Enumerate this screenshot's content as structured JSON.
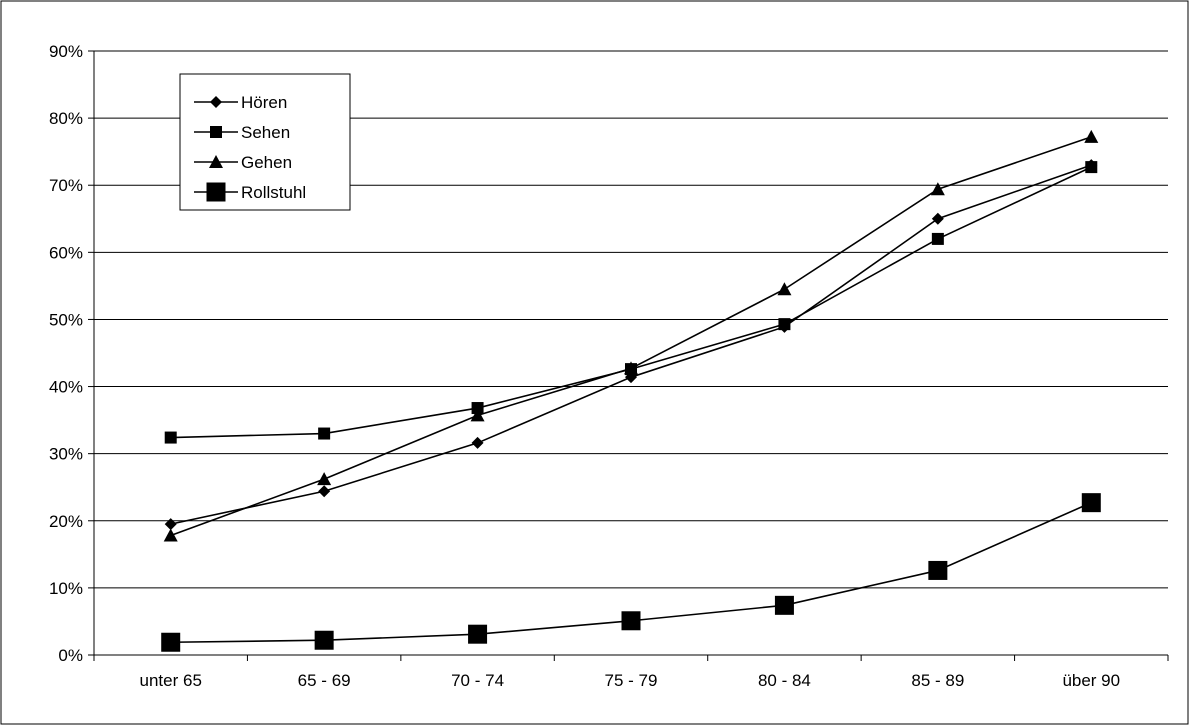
{
  "chart_data": {
    "type": "line",
    "title": "",
    "xlabel": "",
    "ylabel": "",
    "categories": [
      "unter 65",
      "65 - 69",
      "70 - 74",
      "75 - 79",
      "80 - 84",
      "85 - 89",
      "über 90"
    ],
    "y_ticks": [
      "0%",
      "10%",
      "20%",
      "30%",
      "40%",
      "50%",
      "60%",
      "70%",
      "80%",
      "90%"
    ],
    "ylim": [
      0,
      90
    ],
    "y_unit": "%",
    "grid": "horizontal",
    "legend_position": "top-left",
    "series": [
      {
        "name": "Hören",
        "marker": "diamond",
        "values": [
          19.5,
          24.4,
          31.6,
          41.4,
          48.9,
          65.0,
          73.0
        ]
      },
      {
        "name": "Sehen",
        "marker": "square",
        "values": [
          32.4,
          33.0,
          36.8,
          42.6,
          49.3,
          62.0,
          72.7
        ]
      },
      {
        "name": "Gehen",
        "marker": "triangle",
        "values": [
          17.8,
          26.2,
          35.7,
          42.7,
          54.5,
          69.4,
          77.2
        ]
      },
      {
        "name": "Rollstuhl",
        "marker": "square-large",
        "values": [
          1.9,
          2.2,
          3.1,
          5.1,
          7.4,
          12.6,
          22.7
        ]
      }
    ],
    "line_color": "#000000"
  }
}
